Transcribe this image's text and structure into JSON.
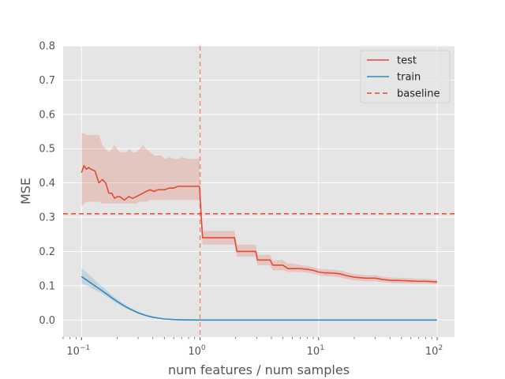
{
  "chart_data": {
    "type": "line",
    "title": "",
    "xlabel": "num features / num samples",
    "ylabel": "MSE",
    "xscale": "log",
    "xlim": [
      0.07,
      140
    ],
    "ylim": [
      -0.05,
      0.8
    ],
    "yticks": [
      0.0,
      0.1,
      0.2,
      0.3,
      0.4,
      0.5,
      0.6,
      0.7,
      0.8
    ],
    "ytick_labels": [
      "0.0",
      "0.1",
      "0.2",
      "0.3",
      "0.4",
      "0.5",
      "0.6",
      "0.7",
      "0.8"
    ],
    "xticks": [
      0.1,
      1,
      10,
      100
    ],
    "xtick_base": "10",
    "xtick_exponents": [
      "−1",
      "0",
      "1",
      "2"
    ],
    "grid": true,
    "legend_position": "top-right",
    "colors": {
      "test": "#E24A33",
      "train": "#348ABD",
      "background": "#E5E5E5",
      "grid": "#FFFFFF"
    },
    "vline": {
      "x": 1.0,
      "color": "#F08A80"
    },
    "series": [
      {
        "name": "test",
        "x": [
          0.1,
          0.105,
          0.11,
          0.115,
          0.12,
          0.13,
          0.14,
          0.15,
          0.16,
          0.17,
          0.18,
          0.19,
          0.2,
          0.21,
          0.22,
          0.23,
          0.24,
          0.25,
          0.27,
          0.29,
          0.31,
          0.33,
          0.35,
          0.38,
          0.41,
          0.44,
          0.47,
          0.5,
          0.55,
          0.6,
          0.65,
          0.7,
          0.8,
          0.9,
          0.99,
          1.02,
          1.05,
          1.1,
          1.3,
          1.6,
          1.95,
          2.05,
          2.5,
          2.95,
          3.05,
          3.5,
          3.9,
          4.1,
          5.0,
          5.5,
          6.0,
          7.0,
          8.0,
          9.0,
          10.0,
          11.0,
          13.0,
          15.0,
          17.0,
          20.0,
          25.0,
          30.0,
          35.0,
          40.0,
          50.0,
          60.0,
          70.0,
          80.0,
          90.0,
          100.0
        ],
        "values": [
          0.43,
          0.45,
          0.44,
          0.445,
          0.44,
          0.435,
          0.4,
          0.41,
          0.4,
          0.37,
          0.37,
          0.355,
          0.36,
          0.36,
          0.355,
          0.35,
          0.355,
          0.36,
          0.355,
          0.36,
          0.365,
          0.37,
          0.375,
          0.38,
          0.375,
          0.38,
          0.38,
          0.38,
          0.385,
          0.385,
          0.39,
          0.39,
          0.39,
          0.39,
          0.39,
          0.31,
          0.24,
          0.24,
          0.24,
          0.24,
          0.24,
          0.2,
          0.2,
          0.2,
          0.175,
          0.175,
          0.175,
          0.16,
          0.16,
          0.15,
          0.15,
          0.15,
          0.148,
          0.145,
          0.14,
          0.138,
          0.137,
          0.135,
          0.13,
          0.125,
          0.122,
          0.122,
          0.118,
          0.116,
          0.115,
          0.114,
          0.113,
          0.113,
          0.112,
          0.111
        ],
        "lower": [
          0.33,
          0.34,
          0.345,
          0.345,
          0.345,
          0.345,
          0.345,
          0.34,
          0.34,
          0.34,
          0.34,
          0.34,
          0.34,
          0.34,
          0.34,
          0.34,
          0.34,
          0.34,
          0.34,
          0.34,
          0.345,
          0.345,
          0.345,
          0.35,
          0.35,
          0.35,
          0.35,
          0.35,
          0.35,
          0.35,
          0.35,
          0.35,
          0.35,
          0.35,
          0.35,
          0.29,
          0.22,
          0.22,
          0.22,
          0.22,
          0.22,
          0.185,
          0.185,
          0.185,
          0.16,
          0.16,
          0.16,
          0.145,
          0.145,
          0.14,
          0.14,
          0.14,
          0.138,
          0.135,
          0.13,
          0.128,
          0.127,
          0.125,
          0.12,
          0.116,
          0.113,
          0.113,
          0.11,
          0.108,
          0.107,
          0.106,
          0.106,
          0.106,
          0.105,
          0.104
        ],
        "upper": [
          0.545,
          0.545,
          0.54,
          0.54,
          0.54,
          0.54,
          0.54,
          0.51,
          0.5,
          0.49,
          0.5,
          0.51,
          0.5,
          0.49,
          0.49,
          0.49,
          0.49,
          0.5,
          0.49,
          0.49,
          0.5,
          0.51,
          0.5,
          0.49,
          0.48,
          0.48,
          0.48,
          0.47,
          0.475,
          0.47,
          0.47,
          0.475,
          0.47,
          0.47,
          0.47,
          0.32,
          0.26,
          0.26,
          0.26,
          0.26,
          0.26,
          0.22,
          0.22,
          0.22,
          0.19,
          0.19,
          0.19,
          0.175,
          0.175,
          0.165,
          0.165,
          0.16,
          0.158,
          0.155,
          0.15,
          0.148,
          0.147,
          0.145,
          0.14,
          0.134,
          0.131,
          0.131,
          0.126,
          0.124,
          0.123,
          0.122,
          0.12,
          0.12,
          0.119,
          0.118
        ]
      },
      {
        "name": "train",
        "x": [
          0.1,
          0.12,
          0.14,
          0.16,
          0.18,
          0.2,
          0.22,
          0.25,
          0.3,
          0.35,
          0.4,
          0.5,
          0.6,
          0.7,
          0.8,
          1.0,
          2.0,
          5.0,
          10.0,
          20.0,
          50.0,
          100.0
        ],
        "values": [
          0.127,
          0.108,
          0.092,
          0.078,
          0.065,
          0.054,
          0.045,
          0.034,
          0.021,
          0.013,
          0.008,
          0.003,
          0.0013,
          0.0006,
          0.0003,
          0.0,
          0.0,
          0.0,
          0.0,
          0.0,
          0.0,
          0.0
        ],
        "lower": [
          0.108,
          0.094,
          0.082,
          0.07,
          0.058,
          0.048,
          0.04,
          0.03,
          0.018,
          0.011,
          0.006,
          0.002,
          0.0008,
          0.0004,
          0.0002,
          0.0,
          0.0,
          0.0,
          0.0,
          0.0,
          0.0,
          0.0
        ],
        "upper": [
          0.152,
          0.128,
          0.106,
          0.089,
          0.074,
          0.061,
          0.051,
          0.039,
          0.025,
          0.016,
          0.01,
          0.004,
          0.0018,
          0.0008,
          0.0004,
          0.0,
          0.0,
          0.0,
          0.0,
          0.0,
          0.0,
          0.0
        ]
      },
      {
        "name": "baseline",
        "style": "dashed",
        "constant": 0.31
      }
    ]
  }
}
